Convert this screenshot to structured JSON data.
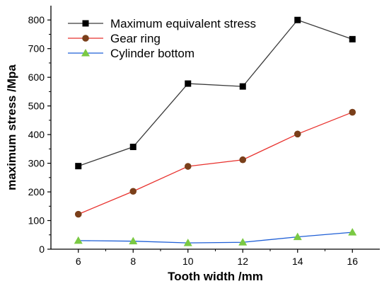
{
  "chart_data": {
    "type": "line",
    "title": "",
    "xlabel": "Tooth width /mm",
    "ylabel": "maximum stress /Mpa",
    "x": [
      6,
      8,
      10,
      12,
      14,
      16
    ],
    "xlim": [
      5,
      17
    ],
    "ylim": [
      0,
      850
    ],
    "xticks": [
      6,
      8,
      10,
      12,
      14,
      16
    ],
    "yticks": [
      0,
      100,
      200,
      300,
      400,
      500,
      600,
      700,
      800
    ],
    "grid": false,
    "legend_position": "top-left",
    "series": [
      {
        "name": "Maximum equivalent stress",
        "values": [
          290,
          357,
          578,
          568,
          800,
          733
        ],
        "color": "#3a3a3a",
        "marker": "square",
        "marker_color": "#000000"
      },
      {
        "name": "Gear ring",
        "values": [
          122,
          202,
          289,
          312,
          402,
          478
        ],
        "color": "#e8322e",
        "marker": "circle",
        "marker_color": "#7a3f1a"
      },
      {
        "name": "Cylinder bottom",
        "values": [
          30,
          28,
          22,
          24,
          43,
          59
        ],
        "color": "#1f5fd6",
        "marker": "triangle",
        "marker_color": "#7ac943"
      }
    ]
  }
}
